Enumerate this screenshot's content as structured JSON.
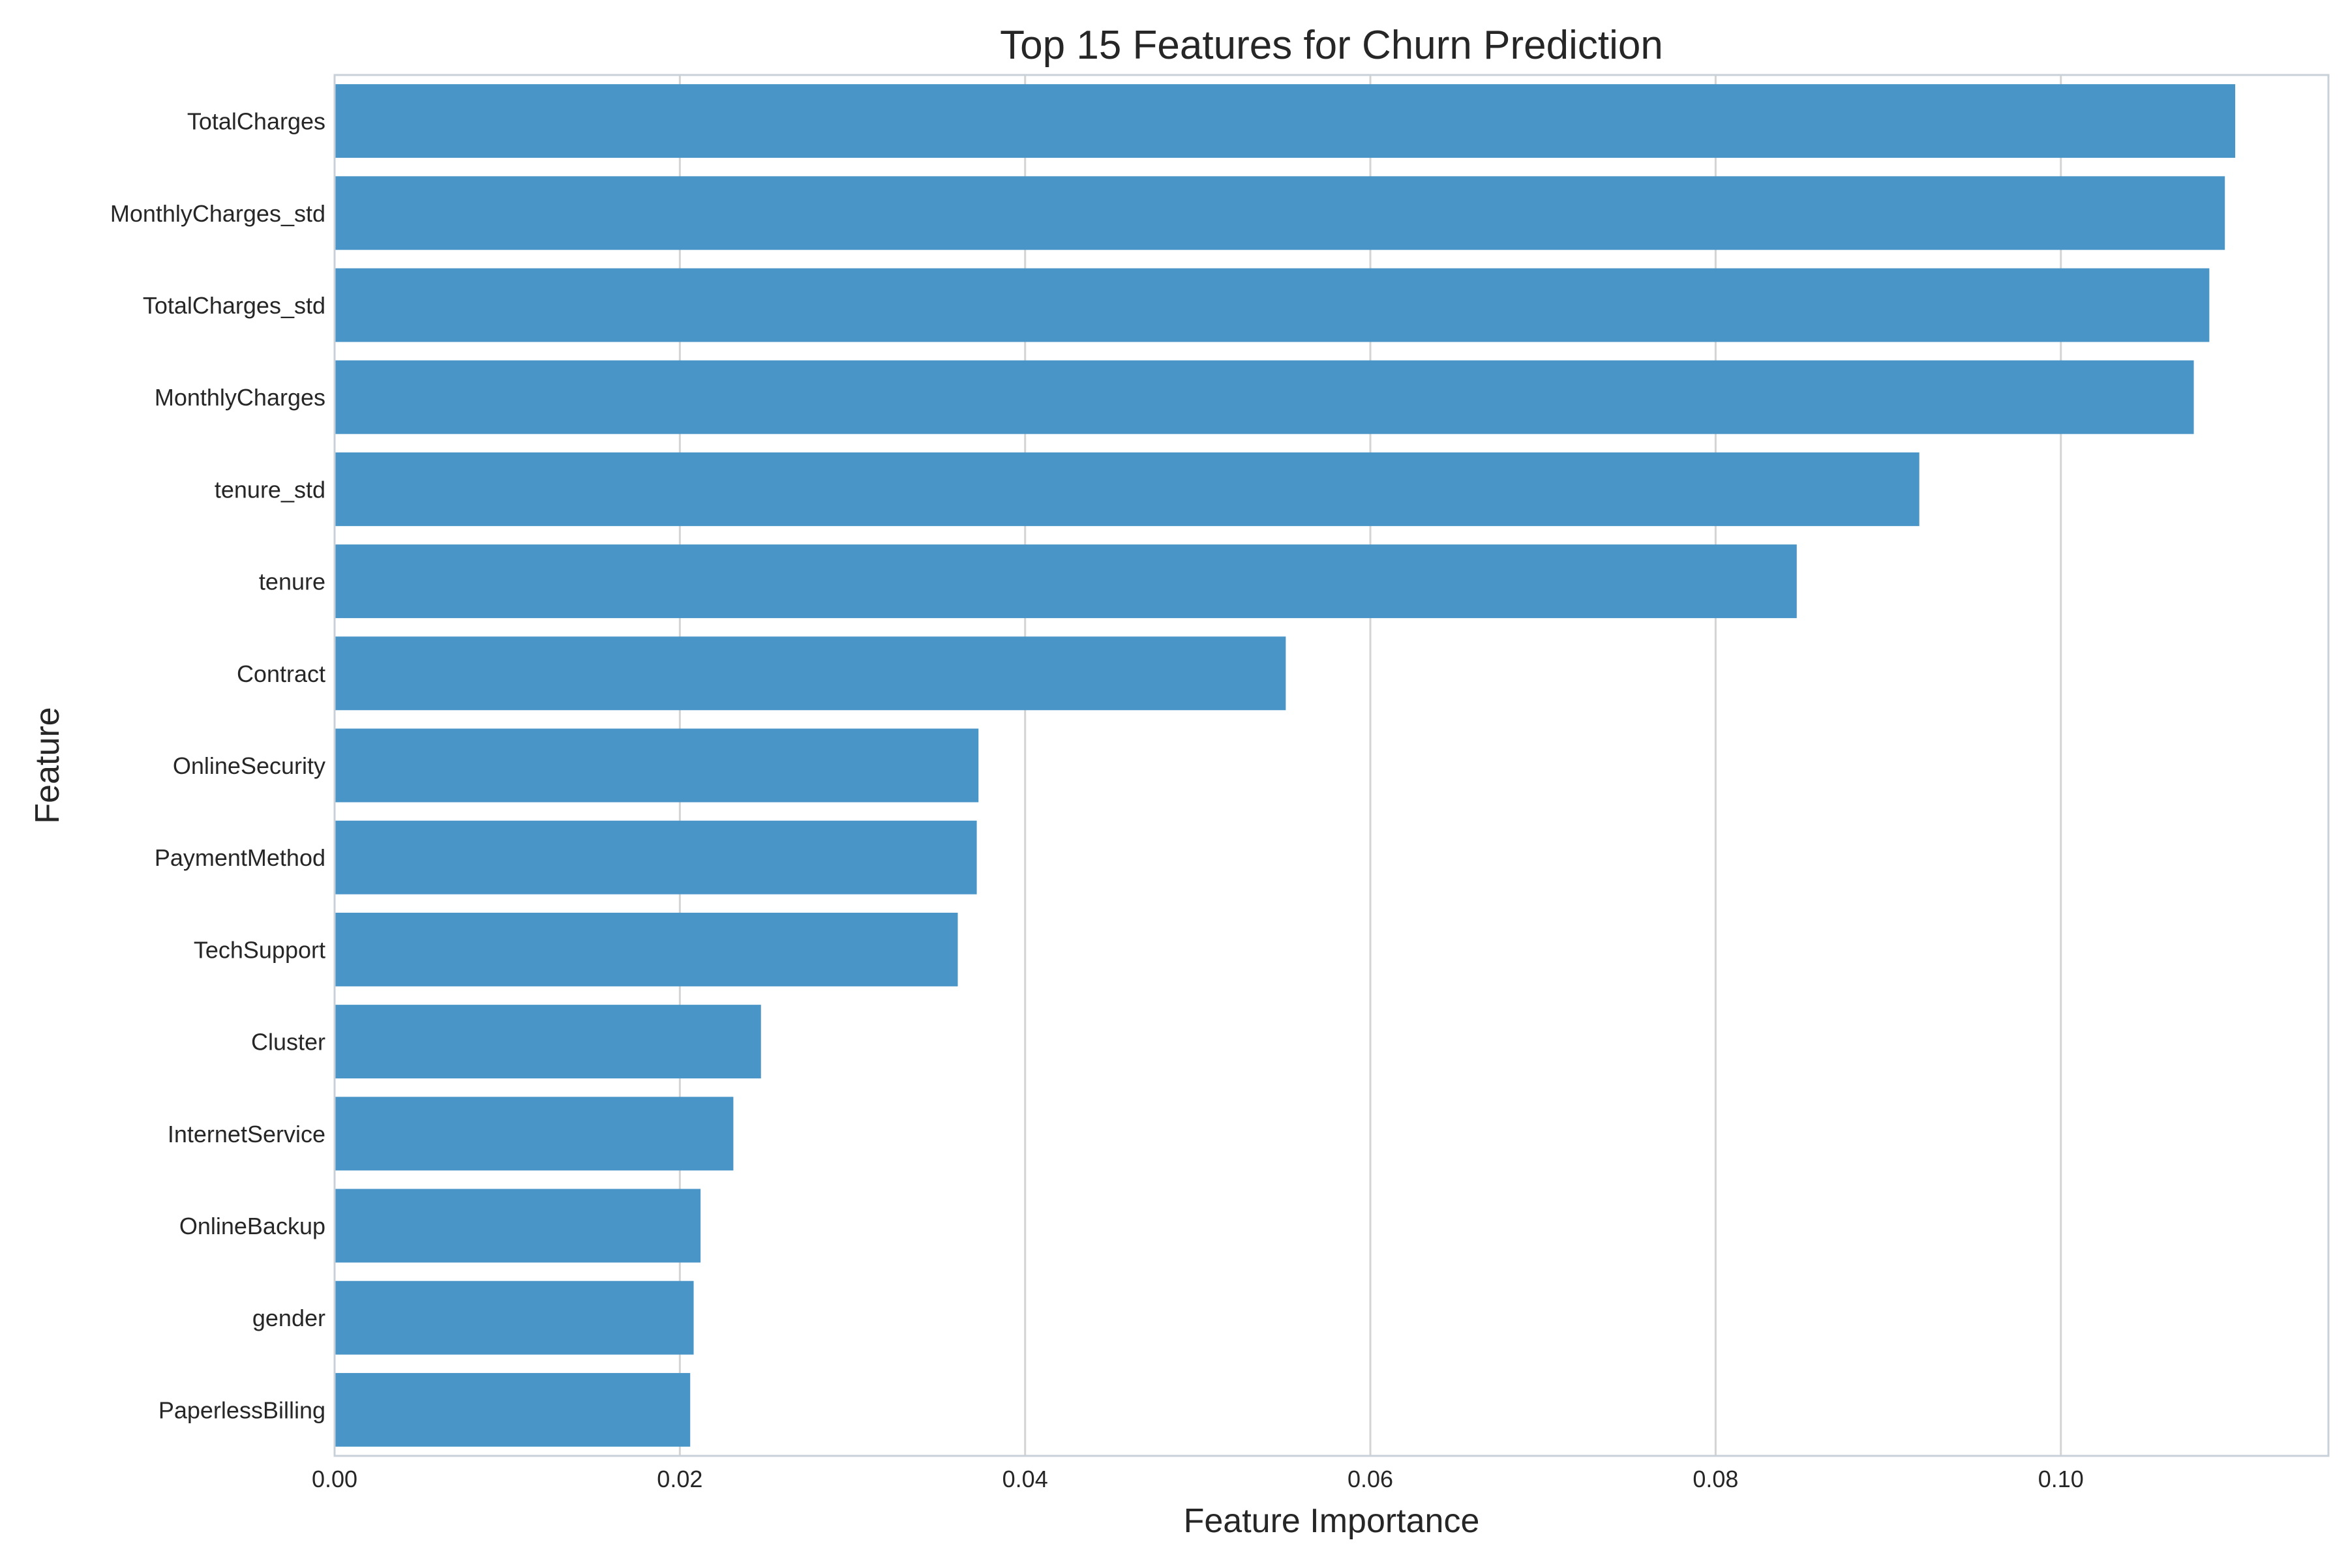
{
  "chart_data": {
    "type": "bar",
    "orientation": "horizontal",
    "title": "Top 15 Features for Churn Prediction",
    "xlabel": "Feature Importance",
    "ylabel": "Feature",
    "xlim": [
      0,
      0.1155
    ],
    "x_ticks": [
      0.0,
      0.02,
      0.04,
      0.06,
      0.08,
      0.1
    ],
    "x_tick_labels": [
      "0.00",
      "0.02",
      "0.04",
      "0.06",
      "0.08",
      "0.10"
    ],
    "grid": true,
    "bar_color": "#4a95c8",
    "categories": [
      "TotalCharges",
      "MonthlyCharges_std",
      "TotalCharges_std",
      "MonthlyCharges",
      "tenure_std",
      "tenure",
      "Contract",
      "OnlineSecurity",
      "PaymentMethod",
      "TechSupport",
      "Cluster",
      "InternetService",
      "OnlineBackup",
      "gender",
      "PaperlessBilling"
    ],
    "values": [
      0.1101,
      0.1095,
      0.1086,
      0.1077,
      0.0918,
      0.0847,
      0.0551,
      0.0373,
      0.0372,
      0.0361,
      0.0247,
      0.0231,
      0.0212,
      0.0208,
      0.0206
    ]
  }
}
